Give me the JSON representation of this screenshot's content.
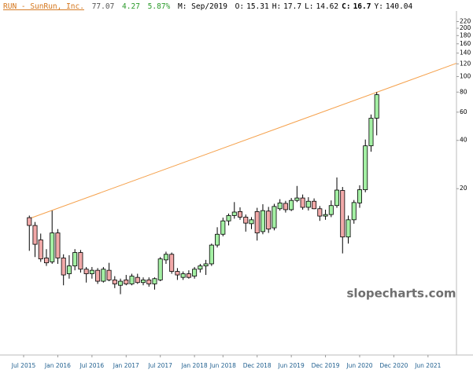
{
  "header": {
    "symbol": "RUN - SunRun, Inc.",
    "last": 77.07,
    "change": 4.27,
    "change_pct": "5.87%",
    "period": "M: Sep/2019",
    "fields": [
      {
        "label": "O:",
        "value": 15.31
      },
      {
        "label": "H:",
        "value": 17.7
      },
      {
        "label": "L:",
        "value": 14.62
      },
      {
        "label": "C:",
        "value": 16.7
      },
      {
        "label": "Y:",
        "value": 140.04
      }
    ]
  },
  "chart_data": {
    "type": "candlestick",
    "watermark": "slopecharts.com",
    "log_scale": true,
    "up_color": "#a4f0a4",
    "down_color": "#f2a9a9",
    "x": [
      1,
      2,
      3,
      4,
      5,
      6,
      7,
      8,
      9,
      10,
      11,
      12,
      13,
      14,
      15,
      16,
      17,
      18,
      19,
      20,
      21,
      22,
      23,
      24,
      25,
      26,
      27,
      28,
      29,
      30,
      31,
      32,
      33,
      34,
      35,
      36,
      37,
      38,
      39,
      40,
      41,
      42,
      43,
      44,
      45,
      46,
      47,
      48,
      49,
      50,
      51,
      52,
      53,
      54,
      55,
      56,
      57,
      58,
      59,
      60,
      61,
      62
    ],
    "open": [
      13.2,
      11.8,
      9.6,
      7.4,
      7.0,
      10.6,
      7.4,
      5.9,
      6.6,
      8.0,
      6.3,
      5.9,
      6.2,
      5.3,
      6.2,
      5.4,
      5.0,
      5.4,
      5.1,
      5.6,
      5.2,
      5.4,
      5.1,
      5.4,
      7.2,
      7.8,
      6.1,
      5.6,
      5.9,
      5.7,
      6.3,
      6.6,
      6.8,
      8.9,
      10.4,
      12.6,
      13.6,
      14.4,
      13.3,
      12.1,
      14.4,
      10.8,
      14.5,
      11.4,
      15.0,
      16.2,
      14.8,
      16.9,
      17.5,
      15.31,
      16.7,
      15.0,
      13.5,
      13.8,
      15.7,
      19.5,
      10.0,
      12.8,
      16.3,
      19.7,
      37.0,
      55.0
    ],
    "high": [
      13.6,
      12.4,
      10.5,
      8.4,
      14.6,
      11.2,
      7.8,
      7.7,
      8.4,
      8.3,
      6.5,
      6.5,
      6.4,
      6.5,
      6.9,
      5.7,
      5.5,
      5.8,
      5.9,
      5.9,
      5.6,
      5.6,
      5.6,
      7.5,
      8.1,
      8.0,
      6.4,
      6.1,
      6.2,
      6.5,
      6.8,
      7.2,
      9.1,
      11.5,
      13.2,
      14.0,
      16.5,
      15.3,
      13.8,
      13.3,
      15.2,
      16.0,
      15.4,
      16.1,
      17.2,
      16.8,
      17.5,
      20.8,
      18.4,
      17.7,
      17.4,
      15.6,
      14.8,
      16.9,
      23.5,
      20.5,
      13.6,
      17.0,
      21.0,
      40.5,
      58.0,
      80.0
    ],
    "low": [
      8.2,
      7.5,
      7.0,
      6.6,
      6.8,
      6.8,
      5.0,
      5.5,
      6.2,
      6.0,
      5.2,
      5.5,
      5.1,
      5.2,
      5.3,
      4.8,
      4.4,
      5.0,
      5.0,
      5.1,
      5.0,
      4.9,
      4.7,
      5.3,
      6.8,
      5.9,
      5.4,
      5.4,
      5.5,
      5.5,
      6.0,
      5.8,
      6.6,
      8.6,
      10.1,
      11.8,
      13.0,
      12.8,
      10.8,
      11.2,
      9.5,
      10.4,
      10.6,
      11.0,
      14.6,
      14.2,
      14.5,
      16.5,
      14.8,
      14.62,
      14.9,
      12.6,
      12.8,
      13.3,
      15.2,
      7.9,
      9.1,
      12.1,
      15.2,
      19.0,
      34.0,
      43.0
    ],
    "close": [
      11.8,
      9.0,
      7.3,
      6.9,
      10.6,
      7.4,
      5.8,
      6.6,
      8.0,
      6.3,
      5.9,
      6.2,
      5.3,
      6.3,
      5.4,
      5.1,
      5.3,
      5.1,
      5.7,
      5.2,
      5.4,
      5.1,
      5.5,
      7.3,
      7.8,
      6.1,
      5.8,
      5.9,
      5.6,
      6.3,
      6.6,
      6.8,
      8.9,
      10.4,
      12.6,
      13.6,
      14.3,
      13.3,
      12.2,
      12.8,
      10.6,
      14.6,
      11.2,
      15.5,
      16.3,
      14.8,
      16.9,
      17.5,
      15.3,
      16.7,
      15.0,
      13.5,
      13.8,
      15.7,
      19.6,
      10.0,
      12.8,
      16.4,
      19.7,
      37.0,
      55.0,
      77.07
    ],
    "trendline": {
      "color": "#f5a04a",
      "x": [
        0.7,
        76
      ],
      "values": [
        12.9,
        121
      ]
    },
    "xlim": [
      -4.15,
      76
    ],
    "ylim": [
      1.88,
      300
    ],
    "xticks": [
      {
        "value": 0,
        "label": "Jul 2015"
      },
      {
        "value": 6,
        "label": "Jan 2016"
      },
      {
        "value": 12,
        "label": "Jul 2016"
      },
      {
        "value": 18,
        "label": "Jan 2017"
      },
      {
        "value": 24,
        "label": "Jul 2017"
      },
      {
        "value": 30,
        "label": "Jan 2018"
      },
      {
        "value": 35,
        "label": "Jun 2018"
      },
      {
        "value": 41,
        "label": "Dec 2018"
      },
      {
        "value": 47,
        "label": "Jun 2019"
      },
      {
        "value": 53,
        "label": "Dec 2019"
      },
      {
        "value": 59,
        "label": "Jun 2020"
      },
      {
        "value": 65,
        "label": "Dec 2020"
      },
      {
        "value": 71,
        "label": "Jun 2021"
      }
    ],
    "yticks": [
      20,
      40,
      60,
      80,
      100,
      120,
      140,
      160,
      180,
      200,
      220
    ]
  }
}
